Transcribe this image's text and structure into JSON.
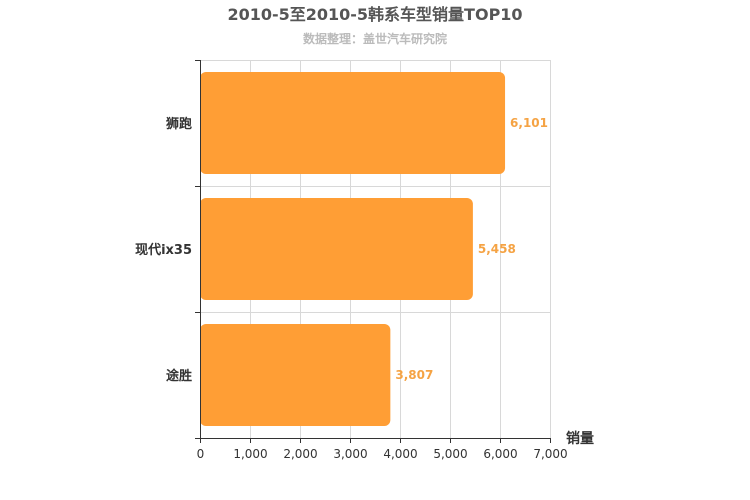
{
  "chart_data": {
    "type": "bar",
    "orientation": "horizontal",
    "title": "2010-5至2010-5韩系车型销量TOP10",
    "subtitle": "数据整理：盖世汽车研究院",
    "categories": [
      "狮跑",
      "现代ix35",
      "途胜"
    ],
    "values": [
      6101,
      5458,
      3807
    ],
    "value_labels": [
      "6,101",
      "5,458",
      "3,807"
    ],
    "xlabel": "销量",
    "ylabel": "",
    "xlim": [
      0,
      7000
    ],
    "x_ticks": [
      0,
      1000,
      2000,
      3000,
      4000,
      5000,
      6000,
      7000
    ],
    "x_tick_labels": [
      "0",
      "1,000",
      "2,000",
      "3,000",
      "4,000",
      "5,000",
      "6,000",
      "7,000"
    ],
    "grid": true,
    "colors": {
      "bar": "#ff9e35",
      "data_label": "#f5a344"
    }
  }
}
